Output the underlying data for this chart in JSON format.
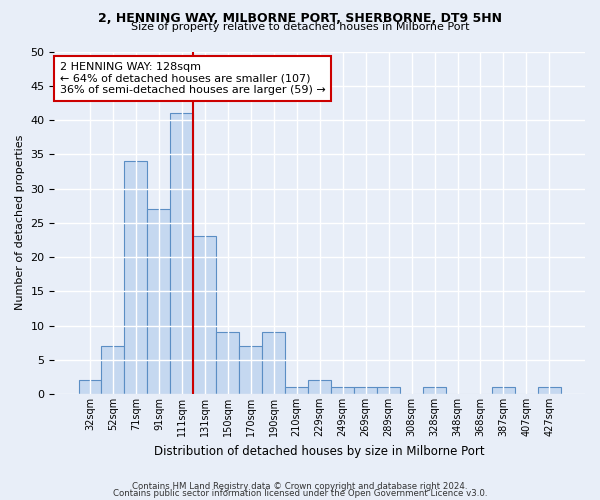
{
  "title1": "2, HENNING WAY, MILBORNE PORT, SHERBORNE, DT9 5HN",
  "title2": "Size of property relative to detached houses in Milborne Port",
  "xlabel": "Distribution of detached houses by size in Milborne Port",
  "ylabel": "Number of detached properties",
  "categories": [
    "32sqm",
    "52sqm",
    "71sqm",
    "91sqm",
    "111sqm",
    "131sqm",
    "150sqm",
    "170sqm",
    "190sqm",
    "210sqm",
    "229sqm",
    "249sqm",
    "269sqm",
    "289sqm",
    "308sqm",
    "328sqm",
    "348sqm",
    "368sqm",
    "387sqm",
    "407sqm",
    "427sqm"
  ],
  "values": [
    2,
    7,
    34,
    27,
    41,
    23,
    9,
    7,
    9,
    1,
    2,
    1,
    1,
    1,
    0,
    1,
    0,
    0,
    1,
    0,
    1
  ],
  "bar_color": "#c5d8f0",
  "bar_edge_color": "#5b8ec4",
  "vline_color": "#cc0000",
  "annotation_text": "2 HENNING WAY: 128sqm\n← 64% of detached houses are smaller (107)\n36% of semi-detached houses are larger (59) →",
  "annotation_box_color": "#ffffff",
  "annotation_box_edge": "#cc0000",
  "ylim": [
    0,
    50
  ],
  "yticks": [
    0,
    5,
    10,
    15,
    20,
    25,
    30,
    35,
    40,
    45,
    50
  ],
  "footer1": "Contains HM Land Registry data © Crown copyright and database right 2024.",
  "footer2": "Contains public sector information licensed under the Open Government Licence v3.0.",
  "background_color": "#e8eef8",
  "grid_color": "#ffffff"
}
